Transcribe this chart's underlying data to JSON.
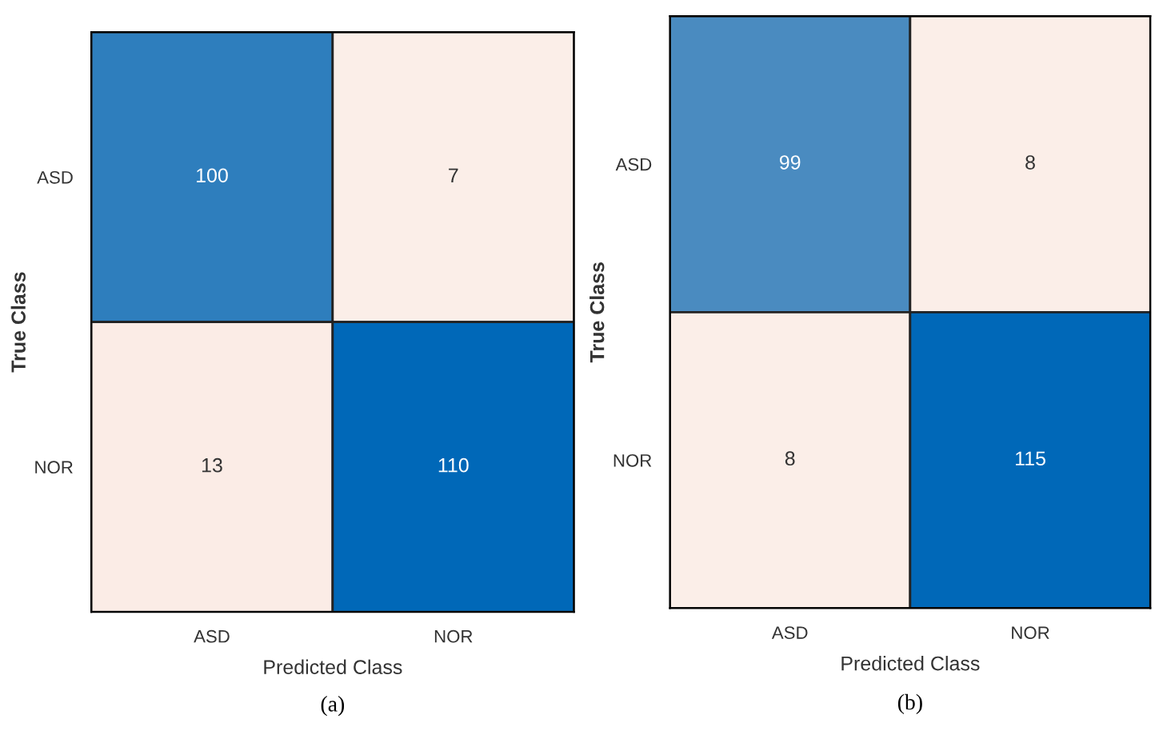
{
  "chart_data": [
    {
      "type": "heatmap",
      "title": "(a)",
      "xlabel": "Predicted Class",
      "ylabel": "True Class",
      "categories": [
        "ASD",
        "NOR"
      ],
      "y_categories": [
        "ASD",
        "NOR"
      ],
      "cells": [
        [
          100,
          7
        ],
        [
          13,
          110
        ]
      ],
      "data_labels": true,
      "colors": [
        "#fbeee8",
        "#f7dcd2",
        "#0068b8"
      ]
    },
    {
      "type": "heatmap",
      "title": "(b)",
      "xlabel": "Predicted Class",
      "ylabel": "True Class",
      "categories": [
        "ASD",
        "NOR"
      ],
      "y_categories": [
        "ASD",
        "NOR"
      ],
      "cells": [
        [
          99,
          8
        ],
        [
          8,
          115
        ]
      ],
      "data_labels": true,
      "colors": [
        "#fbeee8",
        "#f7dcd2",
        "#0068b8"
      ]
    }
  ]
}
